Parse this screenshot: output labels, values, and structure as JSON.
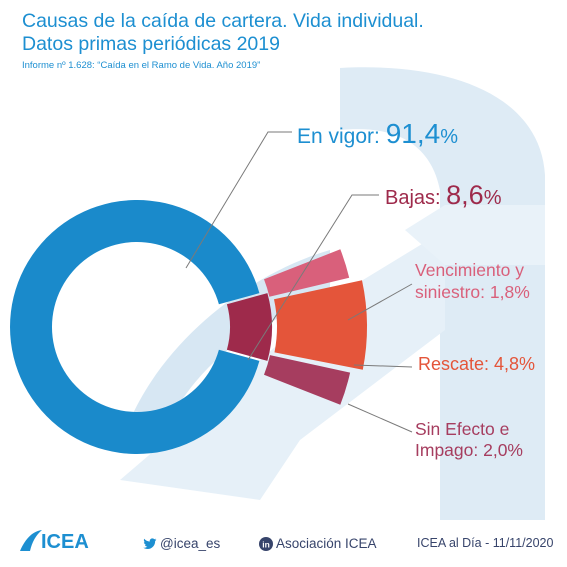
{
  "title_line1": "Causas de la caída de cartera. Vida individual.",
  "title_line2": "Datos primas periódicas 2019",
  "subtitle": "Informe nº 1.628: “Caída en el Ramo de Vida. Año 2019”",
  "chart_data": {
    "type": "pie",
    "donut": true,
    "main_slices": [
      {
        "name": "En vigor",
        "value": 91.4,
        "color": "#1a8acb"
      },
      {
        "name": "Bajas",
        "value": 8.6,
        "color": "#9e2a4b"
      }
    ],
    "breakdown_of": "Bajas",
    "breakdown_slices": [
      {
        "name": "Vencimiento y siniestro",
        "value": 1.8,
        "color": "#d9607b"
      },
      {
        "name": "Rescate",
        "value": 4.8,
        "color": "#e4553a"
      },
      {
        "name": "Sin Efecto e Impago",
        "value": 2.0,
        "color": "#a63d5f"
      }
    ]
  },
  "labels": {
    "vigor": {
      "name": "En vigor:",
      "value": "91,4",
      "pct": "%"
    },
    "bajas": {
      "name": "Bajas:",
      "value": "8,6",
      "pct": "%"
    },
    "venc_line1": "Vencimiento y",
    "venc_line2": "siniestro: 1,8%",
    "rescate": "Rescate: 4,8%",
    "sin_line1": "Sin Efecto e",
    "sin_line2": "Impago: 2,0%"
  },
  "footer": {
    "logo": "ICEA",
    "twitter": "@icea_es",
    "linkedin": "Asociación ICEA",
    "date": "ICEA al Día - 11/11/2020"
  },
  "icons": {
    "twitter": "twitter-bird-icon",
    "linkedin": "linkedin-icon"
  }
}
